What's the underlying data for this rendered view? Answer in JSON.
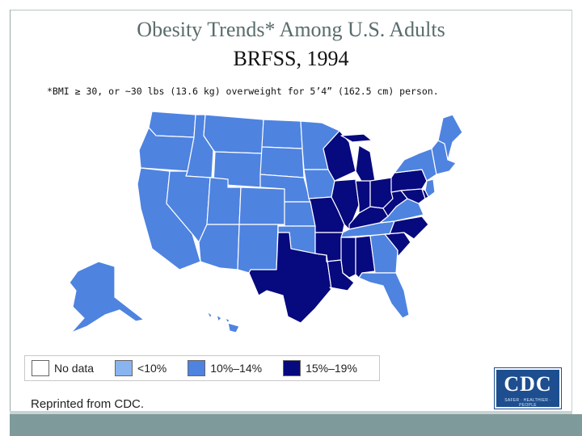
{
  "slide": {
    "title": "Obesity Trends* Among U.S. Adults",
    "subtitle": "BRFSS, 1994",
    "footnote": "*BMI ≥ 30, or ~30 lbs (13.6 kg) overweight for 5’4” (162.5 cm) person.",
    "credit": "Reprinted from CDC."
  },
  "legend": [
    {
      "label": "No data",
      "color": "#ffffff"
    },
    {
      "label": "<10%",
      "color": "#8ab4f0"
    },
    {
      "label": "10%–14%",
      "color": "#4e83e0"
    },
    {
      "label": "15%–19%",
      "color": "#07097e"
    }
  ],
  "map": {
    "categories": {
      "low": "10%–14%",
      "high": "15%–19%"
    },
    "states": [
      {
        "id": "WA",
        "category": "low"
      },
      {
        "id": "OR",
        "category": "low"
      },
      {
        "id": "CA",
        "category": "low"
      },
      {
        "id": "ID",
        "category": "low"
      },
      {
        "id": "NV",
        "category": "low"
      },
      {
        "id": "MT",
        "category": "low"
      },
      {
        "id": "WY",
        "category": "low"
      },
      {
        "id": "UT",
        "category": "low"
      },
      {
        "id": "AZ",
        "category": "low"
      },
      {
        "id": "CO",
        "category": "low"
      },
      {
        "id": "NM",
        "category": "low"
      },
      {
        "id": "ND",
        "category": "low"
      },
      {
        "id": "SD",
        "category": "low"
      },
      {
        "id": "NE",
        "category": "low"
      },
      {
        "id": "KS",
        "category": "low"
      },
      {
        "id": "OK",
        "category": "low"
      },
      {
        "id": "TX",
        "category": "high"
      },
      {
        "id": "MN",
        "category": "low"
      },
      {
        "id": "IA",
        "category": "low"
      },
      {
        "id": "MO",
        "category": "high"
      },
      {
        "id": "AR",
        "category": "high"
      },
      {
        "id": "LA",
        "category": "high"
      },
      {
        "id": "WI",
        "category": "high"
      },
      {
        "id": "IL",
        "category": "high"
      },
      {
        "id": "MI",
        "category": "high"
      },
      {
        "id": "IN",
        "category": "high"
      },
      {
        "id": "OH",
        "category": "high"
      },
      {
        "id": "KY",
        "category": "high"
      },
      {
        "id": "TN",
        "category": "low"
      },
      {
        "id": "MS",
        "category": "high"
      },
      {
        "id": "AL",
        "category": "high"
      },
      {
        "id": "GA",
        "category": "low"
      },
      {
        "id": "FL",
        "category": "low"
      },
      {
        "id": "SC",
        "category": "high"
      },
      {
        "id": "NC",
        "category": "high"
      },
      {
        "id": "VA",
        "category": "low"
      },
      {
        "id": "WV",
        "category": "high"
      },
      {
        "id": "PA",
        "category": "high"
      },
      {
        "id": "NY",
        "category": "low"
      },
      {
        "id": "NJ",
        "category": "low"
      },
      {
        "id": "DE",
        "category": "high"
      },
      {
        "id": "MD",
        "category": "high"
      },
      {
        "id": "NE_STATES",
        "category": "low"
      },
      {
        "id": "ME",
        "category": "low"
      },
      {
        "id": "AK",
        "category": "low"
      },
      {
        "id": "HI",
        "category": "low"
      }
    ]
  },
  "logo": {
    "text": "CDC",
    "tagline": "SAFER · HEALTHIER · PEOPLE"
  }
}
